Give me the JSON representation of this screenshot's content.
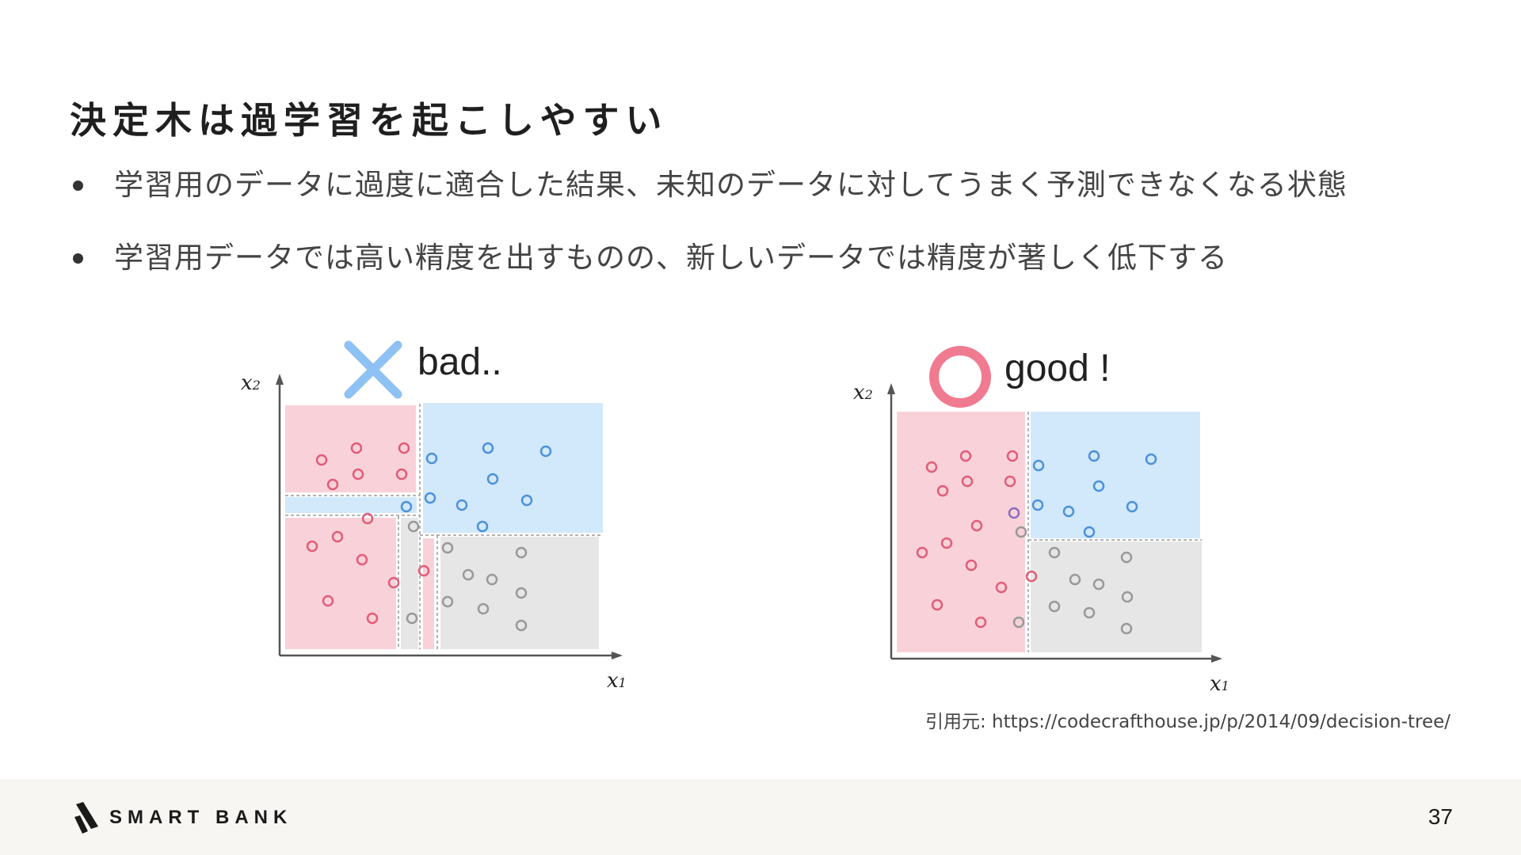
{
  "slide": {
    "title": "決定木は過学習を起こしやすい",
    "bullets": [
      "学習用のデータに過度に適合した結果、未知のデータに対してうまく予測できなくなる状態",
      "学習用データでは高い精度を出すものの、新しいデータでは精度が著しく低下する"
    ],
    "citation": "引用元: https://codecrafthouse.jp/p/2014/09/decision-tree/",
    "page_number": "37",
    "logo_text": "SMART BANK"
  },
  "colors": {
    "red_region": "#f9d1d9",
    "blue_region": "#d2e8fb",
    "gray_region": "#e6e6e6",
    "red_point": "#e15d78",
    "blue_point": "#4b92da",
    "gray_point": "#999999",
    "purple_point": "#8c6dbf",
    "cross_icon": "#8ec1f4",
    "circle_icon": "#f07b90"
  },
  "diagrams": [
    {
      "id": "bad",
      "caption": "bad..",
      "icon": "cross-icon",
      "x_axis_label": "x1",
      "y_axis_label": "x2"
    },
    {
      "id": "good",
      "caption": "good !",
      "icon": "circle-icon",
      "x_axis_label": "x1",
      "y_axis_label": "x2"
    }
  ]
}
